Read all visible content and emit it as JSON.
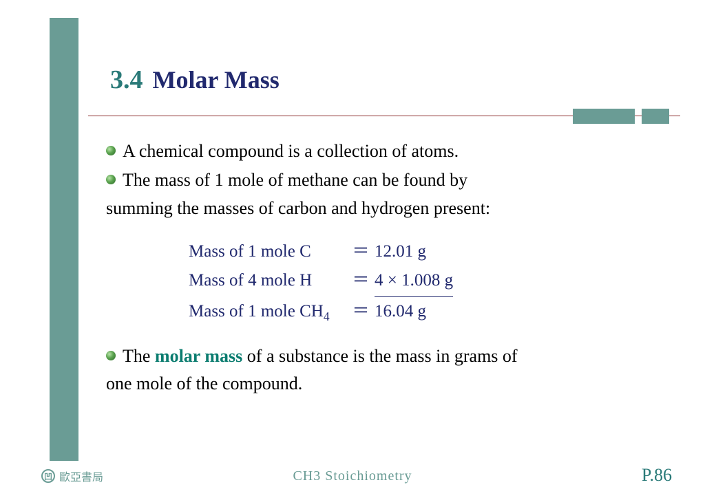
{
  "colors": {
    "teal_bar": "#6a9c95",
    "title_num": "#2a7a78",
    "title_text": "#21296e",
    "rule": "#8a2a2a",
    "body_text": "#000000",
    "calc_text": "#21296e",
    "highlight": "#0a7c6f",
    "footer_text": "#6a9c95",
    "page_num": "#2a7a78",
    "background": "#ffffff"
  },
  "title": {
    "number": "3.4",
    "text": "Molar Mass",
    "num_fontsize": 38,
    "text_fontsize": 36
  },
  "bullets": {
    "b1": "A chemical compound is a collection of atoms.",
    "b2_line1": "The mass of 1 mole of methane can be found by",
    "b2_line2": "summing the masses of carbon and hydrogen present:",
    "b3_pre": "The ",
    "b3_term": "molar mass",
    "b3_post_line1": " of a substance is the mass in grams of",
    "b3_line2": "one mole of the compound."
  },
  "calc": {
    "rows": [
      {
        "lhs": "Mass of 1 mole C",
        "eq": "＝",
        "rhs": "12.01 g",
        "underline": false
      },
      {
        "lhs": "Mass of 4 mole H",
        "eq": "＝",
        "rhs": "4 × 1.008 g",
        "underline": true
      },
      {
        "lhs_html": "Mass of 1 mole CH<sub>4</sub>",
        "eq": "＝",
        "rhs": "16.04 g",
        "underline": false
      }
    ],
    "fontsize": 25
  },
  "footer": {
    "publisher": "歐亞書局",
    "chapter": "CH3  Stoichiometry",
    "page": "P.86"
  }
}
